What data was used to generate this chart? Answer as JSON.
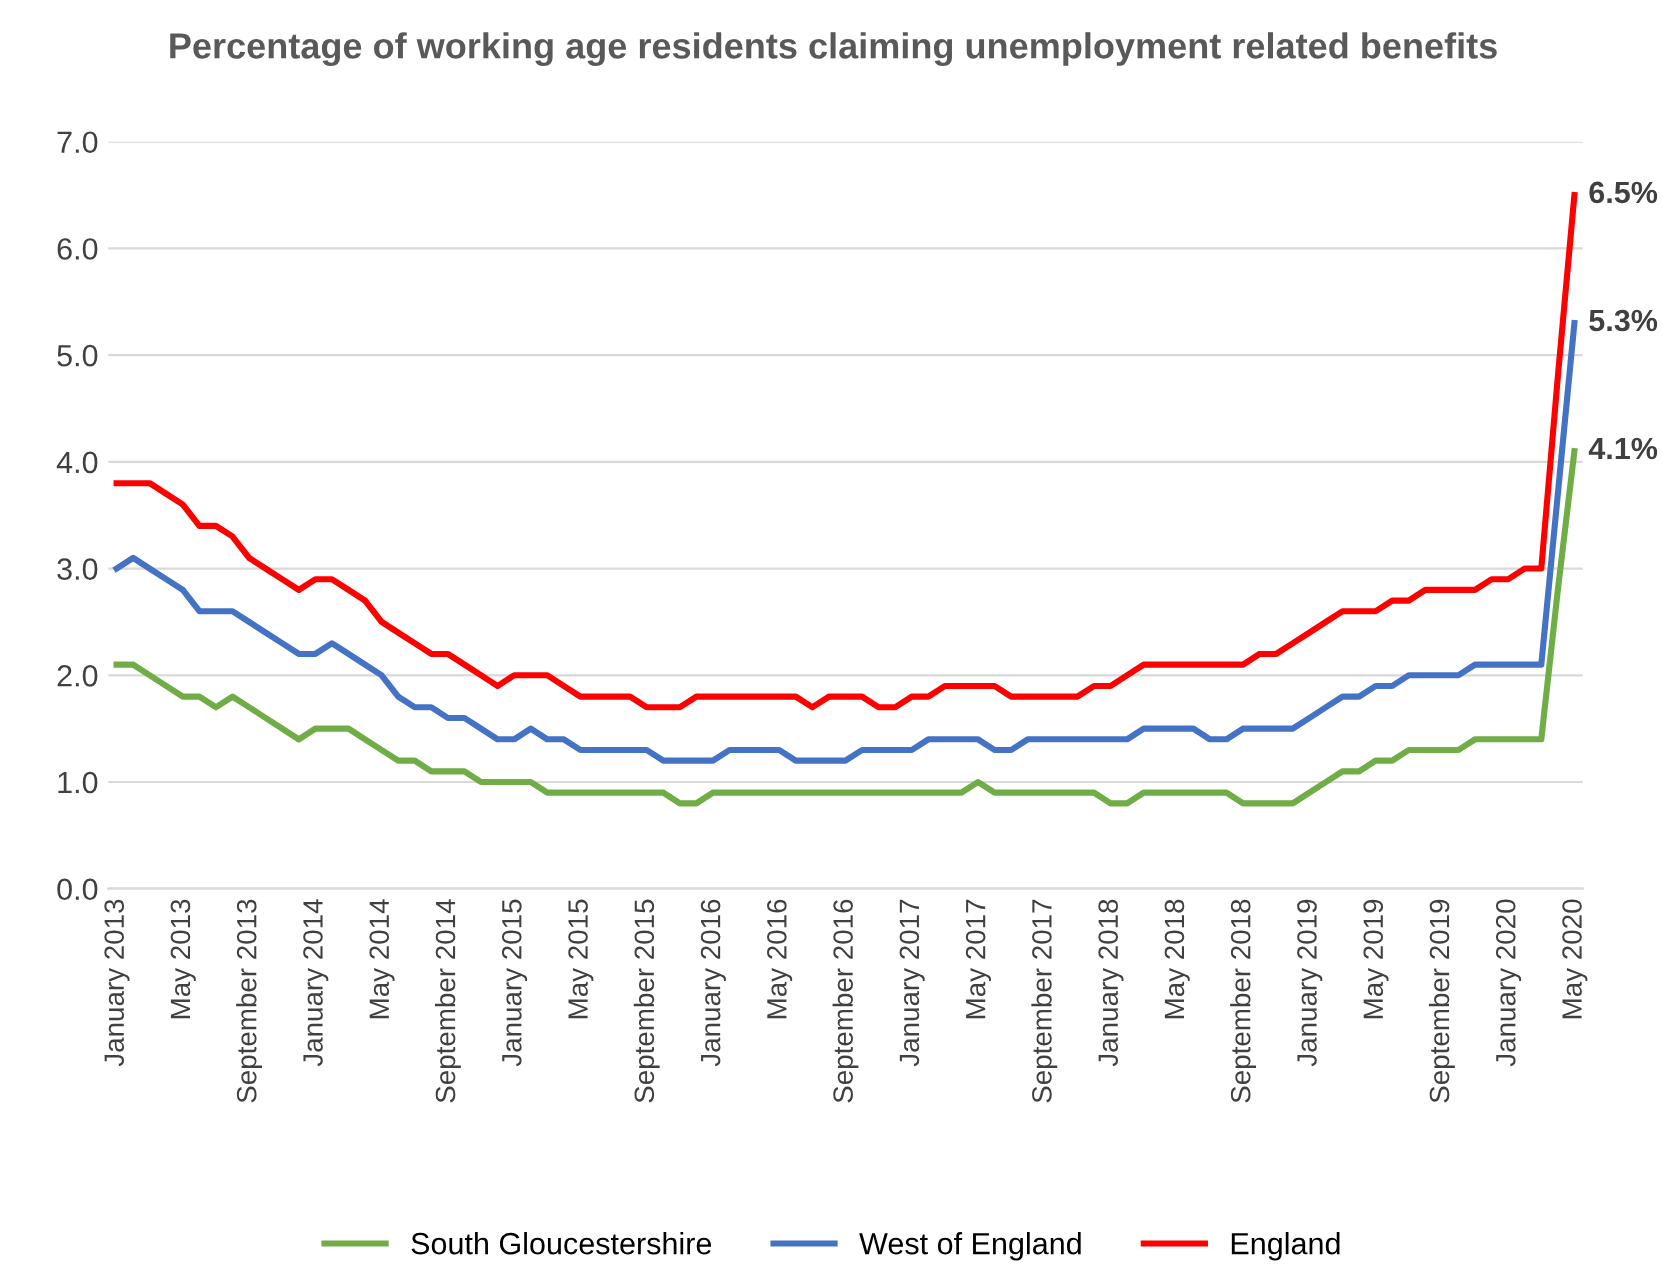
{
  "chart_data": {
    "type": "line",
    "title": "Percentage of working age residents claiming unemployment related benefits",
    "categories": [
      "January 2013",
      null,
      null,
      null,
      "May 2013",
      null,
      null,
      null,
      "September 2013",
      null,
      null,
      null,
      "January 2014",
      null,
      null,
      null,
      "May 2014",
      null,
      null,
      null,
      "September 2014",
      null,
      null,
      null,
      "January 2015",
      null,
      null,
      null,
      "May 2015",
      null,
      null,
      null,
      "September 2015",
      null,
      null,
      null,
      "January 2016",
      null,
      null,
      null,
      "May 2016",
      null,
      null,
      null,
      "September 2016",
      null,
      null,
      null,
      "January 2017",
      null,
      null,
      null,
      "May 2017",
      null,
      null,
      null,
      "September 2017",
      null,
      null,
      null,
      "January 2018",
      null,
      null,
      null,
      "May 2018",
      null,
      null,
      null,
      "September 2018",
      null,
      null,
      null,
      "January 2019",
      null,
      null,
      null,
      "May 2019",
      null,
      null,
      null,
      "September 2019",
      null,
      null,
      null,
      "January 2020",
      null,
      null,
      null,
      "May 2020"
    ],
    "series": [
      {
        "name": "South Gloucestershire",
        "color": "#70ad47",
        "values": [
          2.1,
          2.1,
          2.0,
          1.9,
          1.8,
          1.8,
          1.7,
          1.8,
          1.7,
          1.6,
          1.5,
          1.4,
          1.5,
          1.5,
          1.5,
          1.4,
          1.3,
          1.2,
          1.2,
          1.1,
          1.1,
          1.1,
          1.0,
          1.0,
          1.0,
          1.0,
          0.9,
          0.9,
          0.9,
          0.9,
          0.9,
          0.9,
          0.9,
          0.9,
          0.8,
          0.8,
          0.9,
          0.9,
          0.9,
          0.9,
          0.9,
          0.9,
          0.9,
          0.9,
          0.9,
          0.9,
          0.9,
          0.9,
          0.9,
          0.9,
          0.9,
          0.9,
          1.0,
          0.9,
          0.9,
          0.9,
          0.9,
          0.9,
          0.9,
          0.9,
          0.8,
          0.8,
          0.9,
          0.9,
          0.9,
          0.9,
          0.9,
          0.9,
          0.8,
          0.8,
          0.8,
          0.8,
          0.9,
          1.0,
          1.1,
          1.1,
          1.2,
          1.2,
          1.3,
          1.3,
          1.3,
          1.3,
          1.4,
          1.4,
          1.4,
          1.4,
          1.4,
          2.8,
          4.1
        ],
        "value_labels": [
          null,
          null,
          null,
          null,
          null,
          null,
          null,
          null,
          null,
          null,
          null,
          null,
          null,
          null,
          null,
          null,
          null,
          null,
          null,
          null,
          null,
          null,
          null,
          null,
          null,
          null,
          null,
          null,
          null,
          null,
          null,
          null,
          null,
          null,
          null,
          null,
          null,
          null,
          null,
          null,
          null,
          null,
          null,
          null,
          null,
          null,
          null,
          null,
          null,
          null,
          null,
          null,
          null,
          null,
          null,
          null,
          null,
          null,
          null,
          null,
          null,
          null,
          null,
          null,
          null,
          null,
          null,
          null,
          null,
          null,
          null,
          null,
          null,
          null,
          null,
          null,
          null,
          null,
          null,
          null,
          null,
          null,
          null,
          null,
          null,
          null,
          null,
          null,
          "4.1%"
        ]
      },
      {
        "name": "West of England",
        "color": "#4472c4",
        "values": [
          3.0,
          3.1,
          3.0,
          2.9,
          2.8,
          2.6,
          2.6,
          2.6,
          2.5,
          2.4,
          2.3,
          2.2,
          2.2,
          2.3,
          2.2,
          2.1,
          2.0,
          1.8,
          1.7,
          1.7,
          1.6,
          1.6,
          1.5,
          1.4,
          1.4,
          1.5,
          1.4,
          1.4,
          1.3,
          1.3,
          1.3,
          1.3,
          1.3,
          1.2,
          1.2,
          1.2,
          1.2,
          1.3,
          1.3,
          1.3,
          1.3,
          1.2,
          1.2,
          1.2,
          1.2,
          1.3,
          1.3,
          1.3,
          1.3,
          1.4,
          1.4,
          1.4,
          1.4,
          1.3,
          1.3,
          1.4,
          1.4,
          1.4,
          1.4,
          1.4,
          1.4,
          1.4,
          1.5,
          1.5,
          1.5,
          1.5,
          1.4,
          1.4,
          1.5,
          1.5,
          1.5,
          1.5,
          1.6,
          1.7,
          1.8,
          1.8,
          1.9,
          1.9,
          2.0,
          2.0,
          2.0,
          2.0,
          2.1,
          2.1,
          2.1,
          2.1,
          2.1,
          3.7,
          5.3
        ],
        "value_labels": [
          null,
          null,
          null,
          null,
          null,
          null,
          null,
          null,
          null,
          null,
          null,
          null,
          null,
          null,
          null,
          null,
          null,
          null,
          null,
          null,
          null,
          null,
          null,
          null,
          null,
          null,
          null,
          null,
          null,
          null,
          null,
          null,
          null,
          null,
          null,
          null,
          null,
          null,
          null,
          null,
          null,
          null,
          null,
          null,
          null,
          null,
          null,
          null,
          null,
          null,
          null,
          null,
          null,
          null,
          null,
          null,
          null,
          null,
          null,
          null,
          null,
          null,
          null,
          null,
          null,
          null,
          null,
          null,
          null,
          null,
          null,
          null,
          null,
          null,
          null,
          null,
          null,
          null,
          null,
          null,
          null,
          null,
          null,
          null,
          null,
          null,
          null,
          null,
          "5.3%"
        ]
      },
      {
        "name": "England",
        "color": "#ff0000",
        "values": [
          3.8,
          3.8,
          3.8,
          3.7,
          3.6,
          3.4,
          3.4,
          3.3,
          3.1,
          3.0,
          2.9,
          2.8,
          2.9,
          2.9,
          2.8,
          2.7,
          2.5,
          2.4,
          2.3,
          2.2,
          2.2,
          2.1,
          2.0,
          1.9,
          2.0,
          2.0,
          2.0,
          1.9,
          1.8,
          1.8,
          1.8,
          1.8,
          1.7,
          1.7,
          1.7,
          1.8,
          1.8,
          1.8,
          1.8,
          1.8,
          1.8,
          1.8,
          1.7,
          1.8,
          1.8,
          1.8,
          1.7,
          1.7,
          1.8,
          1.8,
          1.9,
          1.9,
          1.9,
          1.9,
          1.8,
          1.8,
          1.8,
          1.8,
          1.8,
          1.9,
          1.9,
          2.0,
          2.1,
          2.1,
          2.1,
          2.1,
          2.1,
          2.1,
          2.1,
          2.2,
          2.2,
          2.3,
          2.4,
          2.5,
          2.6,
          2.6,
          2.6,
          2.7,
          2.7,
          2.8,
          2.8,
          2.8,
          2.8,
          2.9,
          2.9,
          3.0,
          3.0,
          4.8,
          6.5
        ],
        "value_labels": [
          null,
          null,
          null,
          null,
          null,
          null,
          null,
          null,
          null,
          null,
          null,
          null,
          null,
          null,
          null,
          null,
          null,
          null,
          null,
          null,
          null,
          null,
          null,
          null,
          null,
          null,
          null,
          null,
          null,
          null,
          null,
          null,
          null,
          null,
          null,
          null,
          null,
          null,
          null,
          null,
          null,
          null,
          null,
          null,
          null,
          null,
          null,
          null,
          null,
          null,
          null,
          null,
          null,
          null,
          null,
          null,
          null,
          null,
          null,
          null,
          null,
          null,
          null,
          null,
          null,
          null,
          null,
          null,
          null,
          null,
          null,
          null,
          null,
          null,
          null,
          null,
          null,
          null,
          null,
          null,
          null,
          null,
          null,
          null,
          null,
          null,
          null,
          null,
          "6.5%"
        ]
      }
    ],
    "ylim": [
      0,
      7
    ],
    "yticks": [
      {
        "value": 0,
        "label": "0.0"
      },
      {
        "value": 1,
        "label": "1.0"
      },
      {
        "value": 2,
        "label": "2.0"
      },
      {
        "value": 3,
        "label": "3.0"
      },
      {
        "value": 4,
        "label": "4.0"
      },
      {
        "value": 5,
        "label": "5.0"
      },
      {
        "value": 6,
        "label": "6.0"
      },
      {
        "value": 7,
        "label": "7.0"
      }
    ],
    "grid": "y",
    "legend": "bottom",
    "marker": "none",
    "line_style": "solid"
  }
}
